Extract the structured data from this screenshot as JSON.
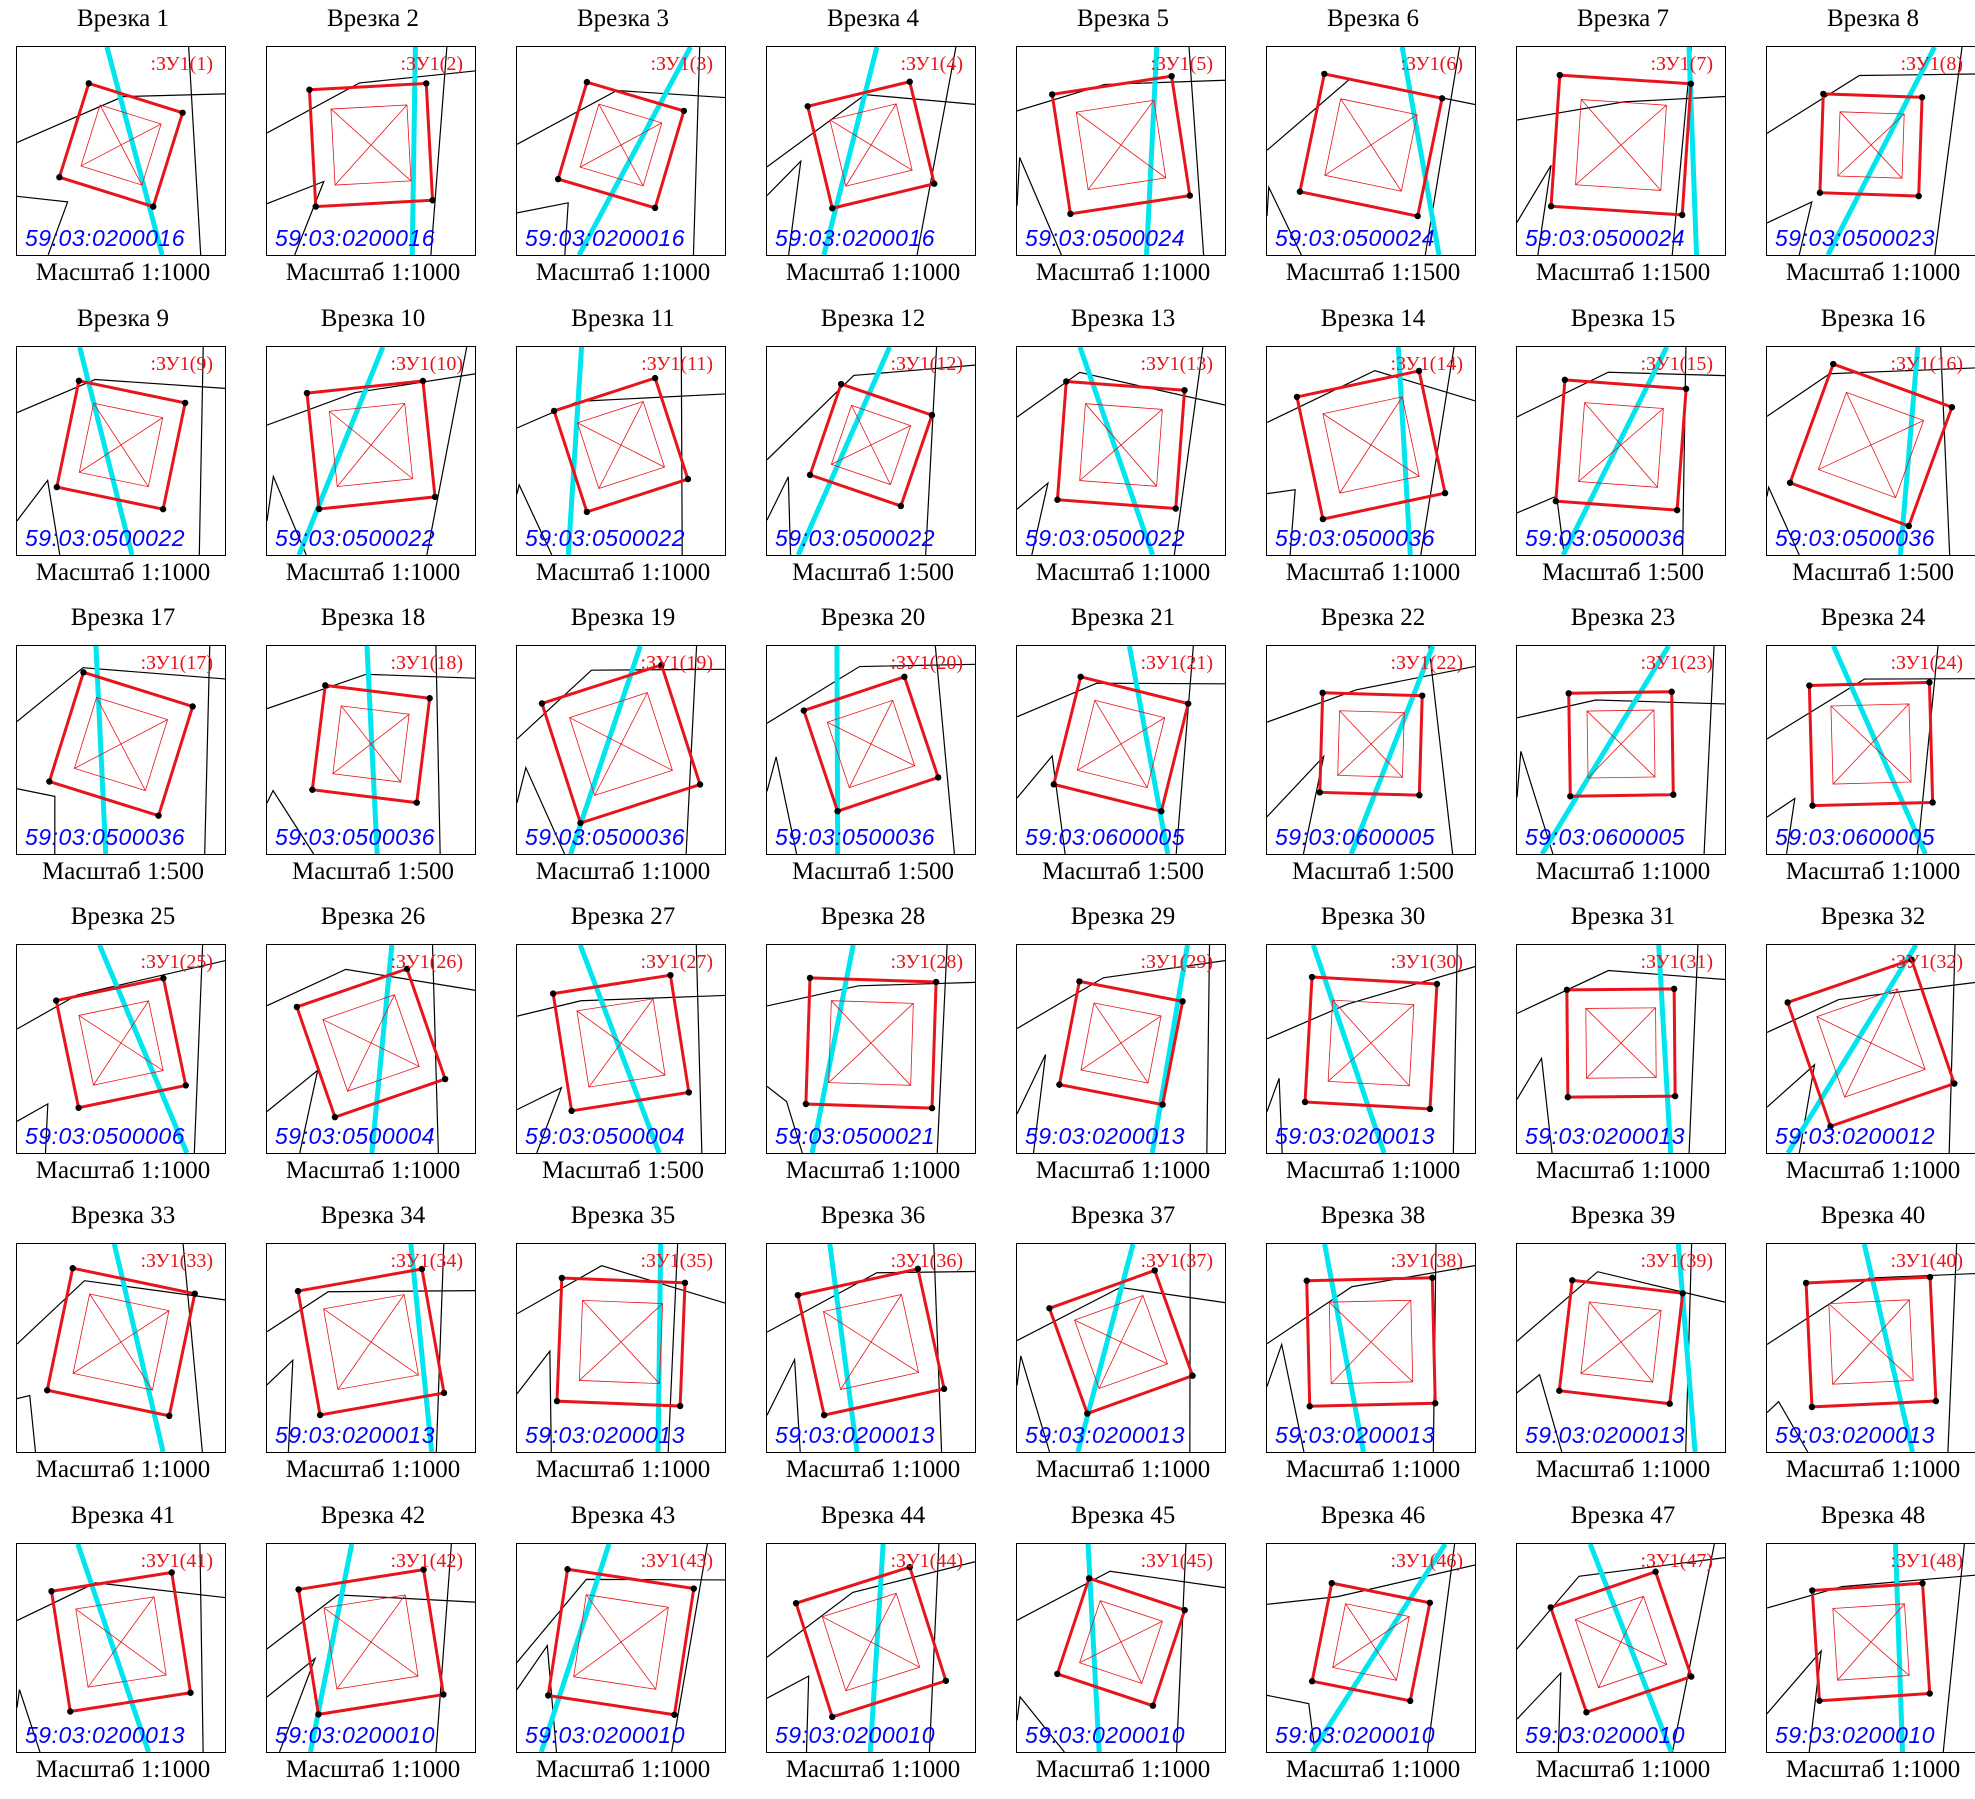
{
  "insets": [
    {
      "title": "Врезка 1",
      "label": ":ЗУ1(1)",
      "cadastral": "59:03:0200016",
      "scale": "Масштаб 1:1000"
    },
    {
      "title": "Врезка 2",
      "label": ":ЗУ1(2)",
      "cadastral": "59:03:0200016",
      "scale": "Масштаб 1:1000"
    },
    {
      "title": "Врезка 3",
      "label": ":ЗУ1(3)",
      "cadastral": "59:03:0200016",
      "scale": "Масштаб 1:1000"
    },
    {
      "title": "Врезка 4",
      "label": ":ЗУ1(4)",
      "cadastral": "59:03:0200016",
      "scale": "Масштаб 1:1000"
    },
    {
      "title": "Врезка 5",
      "label": ":ЗУ1(5)",
      "cadastral": "59:03:0500024",
      "scale": "Масштаб 1:1000"
    },
    {
      "title": "Врезка 6",
      "label": ":ЗУ1(6)",
      "cadastral": "59:03:0500024",
      "scale": "Масштаб 1:1500"
    },
    {
      "title": "Врезка 7",
      "label": ":ЗУ1(7)",
      "cadastral": "59:03:0500024",
      "scale": "Масштаб 1:1500"
    },
    {
      "title": "Врезка 8",
      "label": ":ЗУ1(8)",
      "cadastral": "59:03:0500023",
      "scale": "Масштаб 1:1000"
    },
    {
      "title": "Врезка 9",
      "label": ":ЗУ1(9)",
      "cadastral": "59:03:0500022",
      "scale": "Масштаб 1:1000"
    },
    {
      "title": "Врезка 10",
      "label": ":ЗУ1(10)",
      "cadastral": "59:03:0500022",
      "scale": "Масштаб 1:1000"
    },
    {
      "title": "Врезка 11",
      "label": ":ЗУ1(11)",
      "cadastral": "59:03:0500022",
      "scale": "Масштаб 1:1000"
    },
    {
      "title": "Врезка 12",
      "label": ":ЗУ1(12)",
      "cadastral": "59:03:0500022",
      "scale": "Масштаб 1:500"
    },
    {
      "title": "Врезка 13",
      "label": ":ЗУ1(13)",
      "cadastral": "59:03:0500022",
      "scale": "Масштаб 1:1000"
    },
    {
      "title": "Врезка 14",
      "label": ":ЗУ1(14)",
      "cadastral": "59:03:0500036",
      "scale": "Масштаб 1:1000"
    },
    {
      "title": "Врезка 15",
      "label": ":ЗУ1(15)",
      "cadastral": "59:03:0500036",
      "scale": "Масштаб 1:500"
    },
    {
      "title": "Врезка 16",
      "label": ":ЗУ1(16)",
      "cadastral": "59:03:0500036",
      "scale": "Масштаб 1:500"
    },
    {
      "title": "Врезка 17",
      "label": ":ЗУ1(17)",
      "cadastral": "59:03:0500036",
      "scale": "Масштаб 1:500"
    },
    {
      "title": "Врезка 18",
      "label": ":ЗУ1(18)",
      "cadastral": "59:03:0500036",
      "scale": "Масштаб 1:500"
    },
    {
      "title": "Врезка 19",
      "label": ":ЗУ1(19)",
      "cadastral": "59:03:0500036",
      "scale": "Масштаб 1:1000"
    },
    {
      "title": "Врезка 20",
      "label": ":ЗУ1(20)",
      "cadastral": "59:03:0500036",
      "scale": "Масштаб 1:500"
    },
    {
      "title": "Врезка 21",
      "label": ":ЗУ1(21)",
      "cadastral": "59:03:0600005",
      "scale": "Масштаб 1:500"
    },
    {
      "title": "Врезка 22",
      "label": ":ЗУ1(22)",
      "cadastral": "59:03:0600005",
      "scale": "Масштаб 1:500"
    },
    {
      "title": "Врезка 23",
      "label": ":ЗУ1(23)",
      "cadastral": "59:03:0600005",
      "scale": "Масштаб 1:1000"
    },
    {
      "title": "Врезка 24",
      "label": ":ЗУ1(24)",
      "cadastral": "59:03:0600005",
      "scale": "Масштаб 1:1000"
    },
    {
      "title": "Врезка 25",
      "label": ":ЗУ1(25)",
      "cadastral": "59:03:0500006",
      "scale": "Масштаб 1:1000"
    },
    {
      "title": "Врезка 26",
      "label": ":ЗУ1(26)",
      "cadastral": "59:03:0500004",
      "scale": "Масштаб 1:1000"
    },
    {
      "title": "Врезка 27",
      "label": ":ЗУ1(27)",
      "cadastral": "59:03:0500004",
      "scale": "Масштаб 1:500"
    },
    {
      "title": "Врезка 28",
      "label": ":ЗУ1(28)",
      "cadastral": "59:03:0500021",
      "scale": "Масштаб 1:1000"
    },
    {
      "title": "Врезка 29",
      "label": ":ЗУ1(29)",
      "cadastral": "59:03:0200013",
      "scale": "Масштаб 1:1000"
    },
    {
      "title": "Врезка 30",
      "label": ":ЗУ1(30)",
      "cadastral": "59:03:0200013",
      "scale": "Масштаб 1:1000"
    },
    {
      "title": "Врезка 31",
      "label": ":ЗУ1(31)",
      "cadastral": "59:03:0200013",
      "scale": "Масштаб 1:1000"
    },
    {
      "title": "Врезка 32",
      "label": ":ЗУ1(32)",
      "cadastral": "59:03:0200012",
      "scale": "Масштаб 1:1000"
    },
    {
      "title": "Врезка 33",
      "label": ":ЗУ1(33)",
      "cadastral": "",
      "scale": "Масштаб 1:1000"
    },
    {
      "title": "Врезка 34",
      "label": ":ЗУ1(34)",
      "cadastral": "59:03:0200013",
      "scale": "Масштаб 1:1000"
    },
    {
      "title": "Врезка 35",
      "label": ":ЗУ1(35)",
      "cadastral": "59:03:0200013",
      "scale": "Масштаб 1:1000"
    },
    {
      "title": "Врезка 36",
      "label": ":ЗУ1(36)",
      "cadastral": "59:03:0200013",
      "scale": "Масштаб 1:1000"
    },
    {
      "title": "Врезка 37",
      "label": ":ЗУ1(37)",
      "cadastral": "59:03:0200013",
      "scale": "Масштаб 1:1000"
    },
    {
      "title": "Врезка 38",
      "label": ":ЗУ1(38)",
      "cadastral": "59:03:0200013",
      "scale": "Масштаб 1:1000"
    },
    {
      "title": "Врезка 39",
      "label": ":ЗУ1(39)",
      "cadastral": "59:03:0200013",
      "scale": "Масштаб 1:1000"
    },
    {
      "title": "Врезка 40",
      "label": ":ЗУ1(40)",
      "cadastral": "59:03:0200013",
      "scale": "Масштаб 1:1000"
    },
    {
      "title": "Врезка 41",
      "label": ":ЗУ1(41)",
      "cadastral": "59:03:0200013",
      "scale": "Масштаб 1:1000"
    },
    {
      "title": "Врезка 42",
      "label": ":ЗУ1(42)",
      "cadastral": "59:03:0200010",
      "scale": "Масштаб 1:1000"
    },
    {
      "title": "Врезка 43",
      "label": ":ЗУ1(43)",
      "cadastral": "59:03:0200010",
      "scale": "Масштаб 1:1000"
    },
    {
      "title": "Врезка 44",
      "label": ":ЗУ1(44)",
      "cadastral": "59:03:0200010",
      "scale": "Масштаб 1:1000"
    },
    {
      "title": "Врезка 45",
      "label": ":ЗУ1(45)",
      "cadastral": "59:03:0200010",
      "scale": "Масштаб 1:1000"
    },
    {
      "title": "Врезка 46",
      "label": ":ЗУ1(46)",
      "cadastral": "59:03:0200010",
      "scale": "Масштаб 1:1000"
    },
    {
      "title": "Врезка 47",
      "label": ":ЗУ1(47)",
      "cadastral": "59:03:0200010",
      "scale": "Масштаб 1:1000"
    },
    {
      "title": "Врезка 48",
      "label": ":ЗУ1(48)",
      "cadastral": "59:03:0200010",
      "scale": "Масштаб 1:1000"
    }
  ],
  "colors": {
    "title": "#000000",
    "plot_label": "#e8141c",
    "cadastral": "#0000ff",
    "boundary": "#000000",
    "parcel": "#e8141c",
    "watercourse": "#00e5ee"
  }
}
